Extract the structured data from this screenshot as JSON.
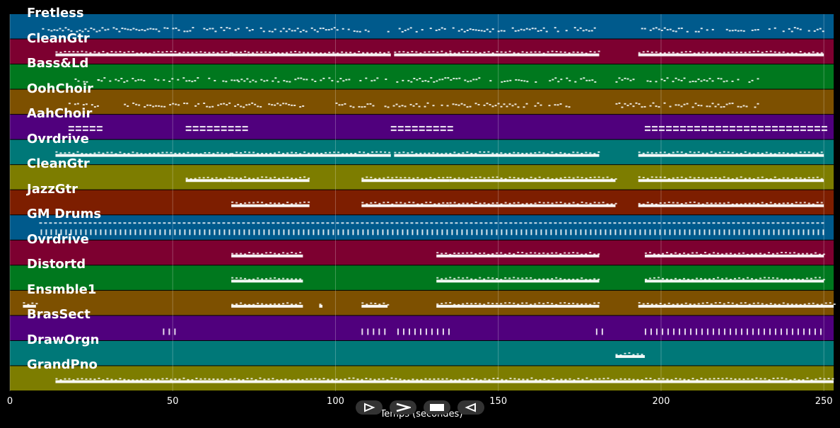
{
  "chart_data": {
    "type": "piano-roll",
    "xlabel": "Temps (secondes)",
    "xlim": [
      0,
      253
    ],
    "x_ticks": [
      0,
      50,
      100,
      150,
      200,
      250
    ],
    "tracks": [
      {
        "name": "Fretless",
        "color": "#005a8c",
        "active": [
          [
            9,
            68
          ],
          [
            69,
            180
          ],
          [
            193,
            250
          ]
        ],
        "style": "sparse"
      },
      {
        "name": "CleanGtr",
        "color": "#7d0030",
        "active": [
          [
            14,
            68
          ],
          [
            68,
            73
          ],
          [
            73,
            117
          ],
          [
            118,
            135
          ],
          [
            135,
            181
          ],
          [
            193,
            250
          ]
        ],
        "style": "solid"
      },
      {
        "name": "Bass&Ld",
        "color": "#00781e",
        "active": [
          [
            19,
            27
          ],
          [
            27,
            70
          ],
          [
            70,
            180
          ],
          [
            186,
            230
          ]
        ],
        "style": "sparse"
      },
      {
        "name": "OohChoir",
        "color": "#7d5000",
        "active": [
          [
            18,
            27
          ],
          [
            35,
            90
          ],
          [
            100,
            112
          ],
          [
            115,
            172
          ],
          [
            186,
            230
          ]
        ],
        "style": "sparse"
      },
      {
        "name": "AahChoir",
        "color": "#50007d",
        "active": [
          [
            18,
            27
          ],
          [
            54,
            72
          ],
          [
            117,
            135
          ],
          [
            195,
            250
          ]
        ],
        "style": "blocks"
      },
      {
        "name": "Ovrdrive",
        "color": "#007878",
        "active": [
          [
            14,
            68
          ],
          [
            68,
            117
          ],
          [
            118,
            181
          ],
          [
            193,
            250
          ]
        ],
        "style": "solid"
      },
      {
        "name": "CleanGtr",
        "color": "#7d7d00",
        "active": [
          [
            54,
            68
          ],
          [
            68,
            92
          ],
          [
            108,
            135
          ],
          [
            135,
            186
          ],
          [
            193,
            250
          ]
        ],
        "style": "solid"
      },
      {
        "name": "JazzGtr",
        "color": "#7d1e00",
        "active": [
          [
            68,
            92
          ],
          [
            108,
            135
          ],
          [
            135,
            186
          ],
          [
            193,
            250
          ]
        ],
        "style": "solid"
      },
      {
        "name": "GM Drums",
        "color": "#005a8c",
        "active": [
          [
            9,
            250
          ]
        ],
        "style": "drums"
      },
      {
        "name": "Ovrdrive",
        "color": "#7d0030",
        "active": [
          [
            68,
            90
          ],
          [
            131,
            181
          ],
          [
            195,
            250
          ]
        ],
        "style": "solid"
      },
      {
        "name": "Distortd",
        "color": "#00781e",
        "active": [
          [
            68,
            90
          ],
          [
            131,
            181
          ],
          [
            195,
            250
          ]
        ],
        "style": "solid"
      },
      {
        "name": "Ensmble1",
        "color": "#7d5000",
        "active": [
          [
            4,
            8
          ],
          [
            68,
            90
          ],
          [
            95,
            96
          ],
          [
            108,
            116
          ],
          [
            131,
            181
          ],
          [
            193,
            253
          ]
        ],
        "style": "solid"
      },
      {
        "name": "BrasSect",
        "color": "#50007d",
        "active": [
          [
            47,
            52
          ],
          [
            108,
            116
          ],
          [
            119,
            135
          ],
          [
            180,
            183
          ],
          [
            195,
            250
          ]
        ],
        "style": "ticks"
      },
      {
        "name": "DrawOrgn",
        "color": "#007878",
        "active": [
          [
            186,
            195
          ]
        ],
        "style": "solid"
      },
      {
        "name": "GrandPno",
        "color": "#7d7d00",
        "active": [
          [
            14,
            253
          ]
        ],
        "style": "solid"
      }
    ]
  },
  "controls": [
    {
      "name": "play-button",
      "icon": "play-icon"
    },
    {
      "name": "fast-forward-button",
      "icon": "fast-forward-icon"
    },
    {
      "name": "stop-button",
      "icon": "stop-icon"
    },
    {
      "name": "rewind-button",
      "icon": "rewind-icon"
    }
  ]
}
